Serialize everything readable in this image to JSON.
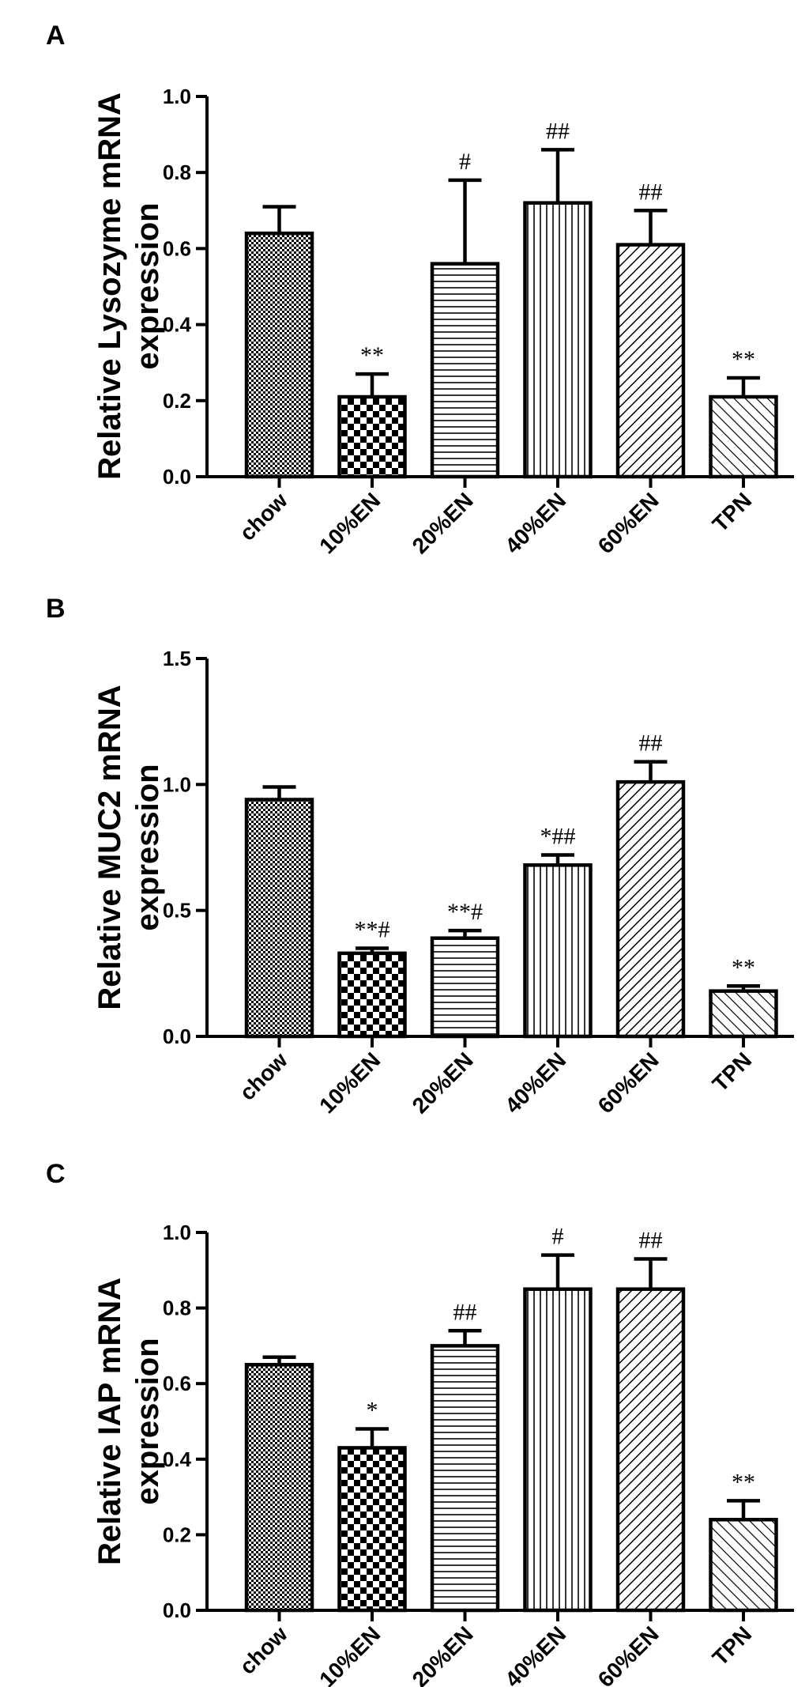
{
  "chart_data": [
    {
      "type": "bar",
      "panel": "A",
      "ylabel": [
        "Relative Lysozyme mRNA",
        "expression"
      ],
      "ylim": [
        0,
        1.0
      ],
      "yticks": [
        "0.0",
        "0.2",
        "0.4",
        "0.6",
        "0.8",
        "1.0"
      ],
      "categories": [
        "chow",
        "10%EN",
        "20%EN",
        "40%EN",
        "60%EN",
        "TPN"
      ],
      "patterns": [
        "fine-check",
        "check",
        "horizontal",
        "vertical",
        "diag-right",
        "diag-left"
      ],
      "values": [
        0.64,
        0.21,
        0.56,
        0.72,
        0.61,
        0.21
      ],
      "errors": [
        0.07,
        0.06,
        0.22,
        0.14,
        0.09,
        0.05
      ],
      "significance": [
        "",
        "**",
        "#",
        "##",
        "##",
        "**"
      ]
    },
    {
      "type": "bar",
      "panel": "B",
      "ylabel": [
        "Relative MUC2 mRNA",
        "expression"
      ],
      "ylim": [
        0,
        1.5
      ],
      "yticks": [
        "0.0",
        "0.5",
        "1.0",
        "1.5"
      ],
      "categories": [
        "chow",
        "10%EN",
        "20%EN",
        "40%EN",
        "60%EN",
        "TPN"
      ],
      "patterns": [
        "fine-check",
        "check",
        "horizontal",
        "vertical",
        "diag-right",
        "diag-left"
      ],
      "values": [
        0.94,
        0.33,
        0.39,
        0.68,
        1.01,
        0.18
      ],
      "errors": [
        0.05,
        0.02,
        0.03,
        0.04,
        0.08,
        0.02
      ],
      "significance": [
        "",
        "**#",
        "**#",
        "*##",
        "##",
        "**"
      ]
    },
    {
      "type": "bar",
      "panel": "C",
      "ylabel": [
        "Relative IAP mRNA",
        "expression"
      ],
      "ylim": [
        0,
        1.0
      ],
      "yticks": [
        "0.0",
        "0.2",
        "0.4",
        "0.6",
        "0.8",
        "1.0"
      ],
      "categories": [
        "chow",
        "10%EN",
        "20%EN",
        "40%EN",
        "60%EN",
        "TPN"
      ],
      "patterns": [
        "fine-check",
        "check",
        "horizontal",
        "vertical",
        "diag-right",
        "diag-left"
      ],
      "values": [
        0.65,
        0.43,
        0.7,
        0.85,
        0.85,
        0.24
      ],
      "errors": [
        0.02,
        0.05,
        0.04,
        0.09,
        0.08,
        0.05
      ],
      "significance": [
        "",
        "*",
        "##",
        "#",
        "##",
        "**"
      ]
    }
  ]
}
